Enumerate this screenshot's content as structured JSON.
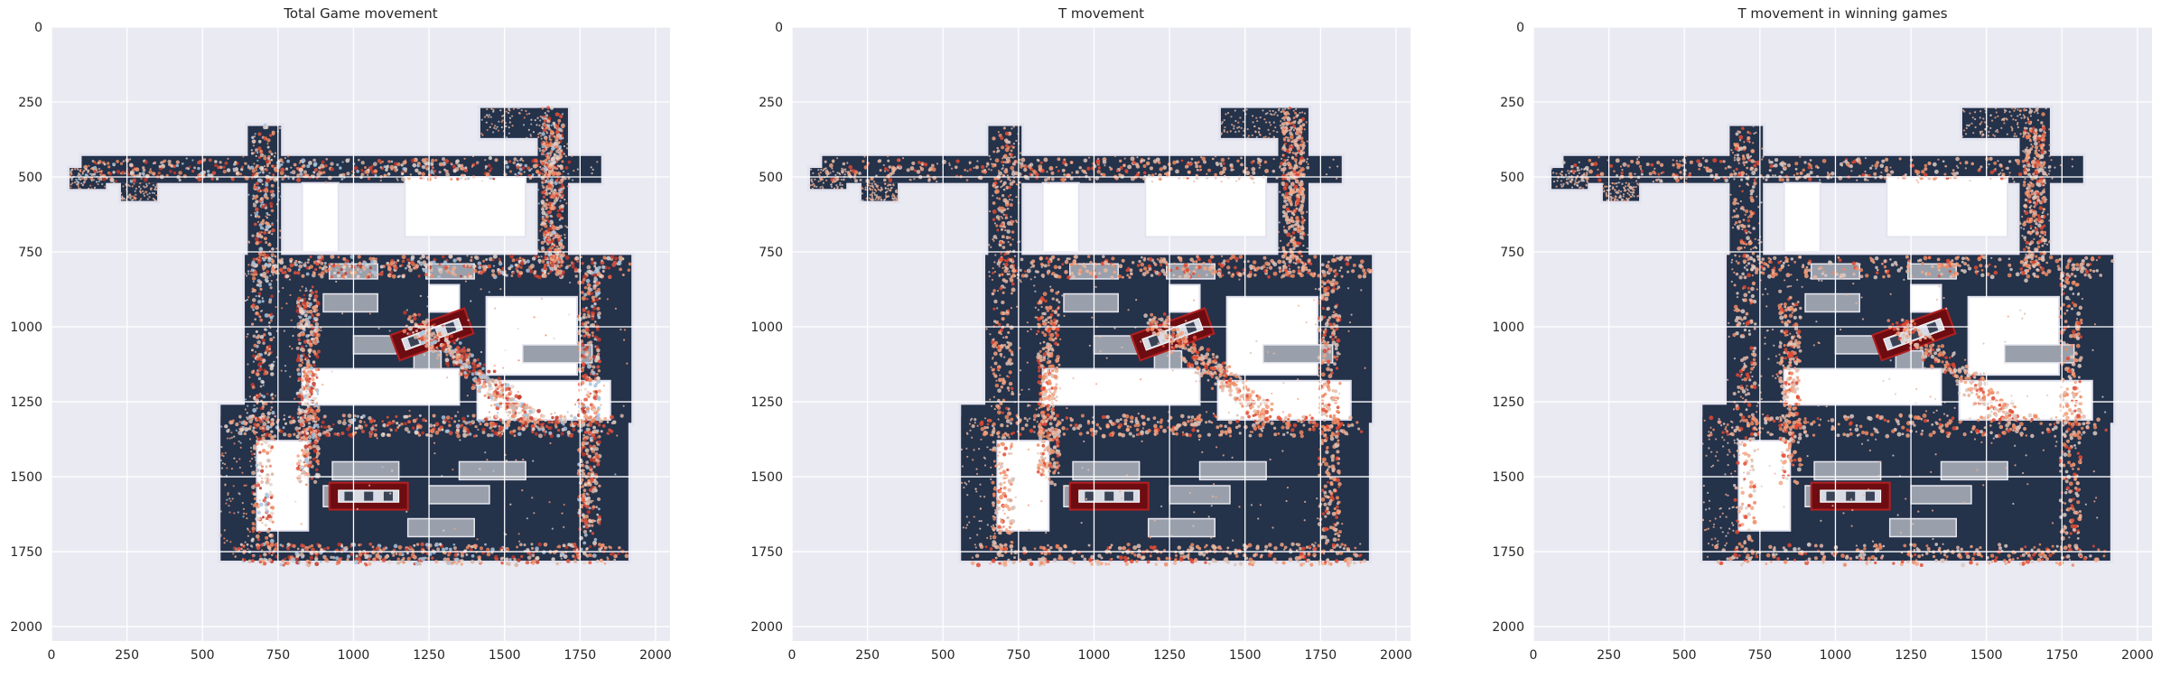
{
  "figure": {
    "background": "#ffffff",
    "axes_facecolor": "#eaeaf2",
    "grid_color": "#ffffff",
    "map_color": "#24324a",
    "map_outline": "#e3e3ef",
    "obstacle_color": "#9aa0ab"
  },
  "chart_data": [
    {
      "type": "scatter",
      "title": "Total Game movement",
      "xlabel": "",
      "ylabel": "",
      "xlim": [
        0,
        2048
      ],
      "ylim": [
        2048,
        0
      ],
      "xticks": [
        0,
        250,
        500,
        750,
        1000,
        1250,
        1500,
        1750,
        2000
      ],
      "yticks": [
        0,
        250,
        500,
        750,
        1000,
        1250,
        1500,
        1750,
        2000
      ],
      "grid": true,
      "palette": [
        "#c0392b",
        "#e0533d",
        "#ef8a62",
        "#f4a582",
        "#d7b5a6",
        "#e8d6cc",
        "#a9c4dd"
      ]
    },
    {
      "type": "scatter",
      "title": "T movement",
      "xlabel": "",
      "ylabel": "",
      "xlim": [
        0,
        2048
      ],
      "ylim": [
        2048,
        0
      ],
      "xticks": [
        0,
        250,
        500,
        750,
        1000,
        1250,
        1500,
        1750,
        2000
      ],
      "yticks": [
        0,
        250,
        500,
        750,
        1000,
        1250,
        1500,
        1750,
        2000
      ],
      "grid": true,
      "palette": [
        "#e24a33",
        "#ef8a62",
        "#f4a582",
        "#e9b9a2",
        "#d9c2b8"
      ]
    },
    {
      "type": "scatter",
      "title": "T movement in winning games",
      "xlabel": "",
      "ylabel": "",
      "xlim": [
        0,
        2048
      ],
      "ylim": [
        2048,
        0
      ],
      "xticks": [
        0,
        250,
        500,
        750,
        1000,
        1250,
        1500,
        1750,
        2000
      ],
      "yticks": [
        0,
        250,
        500,
        750,
        1000,
        1250,
        1500,
        1750,
        2000
      ],
      "grid": true,
      "palette": [
        "#e24a33",
        "#ef8a62",
        "#f4a582",
        "#e3b8a8",
        "#dccbc4"
      ]
    }
  ]
}
